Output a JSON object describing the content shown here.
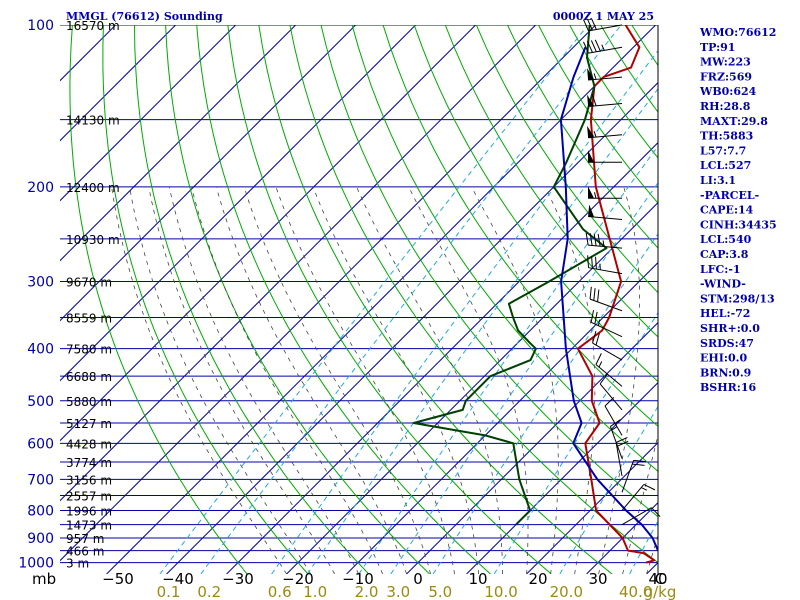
{
  "chart_data": {
    "type": "line",
    "title": "MMGL (76612) Sounding",
    "valid_time": "0000Z  1 MAY 25",
    "pressure_levels": [
      100,
      200,
      300,
      400,
      500,
      600,
      700,
      800,
      900,
      1000
    ],
    "pressure_labels": [
      "100",
      "200",
      "300",
      "400",
      "500",
      "600",
      "700",
      "800",
      "900",
      "1000"
    ],
    "height_labels": [
      {
        "p": 100,
        "label": "16570 m"
      },
      {
        "p": 150,
        "label": "14130 m"
      },
      {
        "p": 200,
        "label": "12400 m"
      },
      {
        "p": 250,
        "label": "10930 m"
      },
      {
        "p": 300,
        "label": "9670 m"
      },
      {
        "p": 350,
        "label": "8559 m"
      },
      {
        "p": 400,
        "label": "7580 m"
      },
      {
        "p": 450,
        "label": "6688 m"
      },
      {
        "p": 500,
        "label": "5880 m"
      },
      {
        "p": 550,
        "label": "5127 m"
      },
      {
        "p": 600,
        "label": "4428 m"
      },
      {
        "p": 650,
        "label": "3774 m"
      },
      {
        "p": 700,
        "label": "3156 m"
      },
      {
        "p": 750,
        "label": "2557 m"
      },
      {
        "p": 800,
        "label": "1996 m"
      },
      {
        "p": 850,
        "label": "1473 m"
      },
      {
        "p": 900,
        "label": "957 m"
      },
      {
        "p": 950,
        "label": "466 m"
      },
      {
        "p": 1000,
        "label": "3 m"
      }
    ],
    "temperature_ticks": [
      -50,
      -40,
      -30,
      -20,
      -10,
      0,
      10,
      20,
      30,
      40
    ],
    "temperature_tick_labels": [
      "−50",
      "−40",
      "−30",
      "−20",
      "−10",
      "0",
      "10",
      "20",
      "30",
      "40"
    ],
    "x_axis_prefix": "mb",
    "x_axis_suffix": "C",
    "mixing_ratio_labels": [
      "0.1",
      "0.2",
      "0.6",
      "1.0",
      "2.0",
      "3.0",
      "5.0",
      "10.0",
      "20.0",
      "40.0"
    ],
    "mixing_ratio_unit": "g/kg",
    "series": [
      {
        "id": "temperature",
        "color": "#b00000",
        "points": [
          [
            1000,
            38
          ],
          [
            990,
            39
          ],
          [
            960,
            36
          ],
          [
            950,
            33
          ],
          [
            900,
            30
          ],
          [
            800,
            21
          ],
          [
            700,
            15
          ],
          [
            600,
            8
          ],
          [
            550,
            7
          ],
          [
            500,
            2
          ],
          [
            450,
            -2
          ],
          [
            400,
            -9
          ],
          [
            370,
            -8
          ],
          [
            350,
            -9
          ],
          [
            300,
            -13
          ],
          [
            250,
            -22
          ],
          [
            200,
            -33
          ],
          [
            150,
            -45
          ],
          [
            130,
            -50
          ],
          [
            125,
            -50
          ],
          [
            120,
            -47
          ],
          [
            110,
            -49
          ],
          [
            100,
            -55
          ]
        ]
      },
      {
        "id": "dewpoint",
        "color": "#004000",
        "points": [
          [
            850,
            10
          ],
          [
            800,
            10
          ],
          [
            700,
            3
          ],
          [
            600,
            -4
          ],
          [
            580,
            -10
          ],
          [
            550,
            -24
          ],
          [
            520,
            -18
          ],
          [
            500,
            -19
          ],
          [
            450,
            -19
          ],
          [
            420,
            -15
          ],
          [
            400,
            -16
          ],
          [
            390,
            -18
          ],
          [
            370,
            -22
          ],
          [
            350,
            -25
          ],
          [
            330,
            -28
          ],
          [
            300,
            -25
          ],
          [
            260,
            -21
          ],
          [
            240,
            -28
          ],
          [
            200,
            -40
          ],
          [
            180,
            -42
          ],
          [
            150,
            -46
          ],
          [
            130,
            -50
          ],
          [
            115,
            -56
          ],
          [
            100,
            -61
          ]
        ]
      },
      {
        "id": "parcel",
        "color": "#0000aa",
        "points": [
          [
            950,
            38
          ],
          [
            900,
            35
          ],
          [
            850,
            31
          ],
          [
            800,
            26
          ],
          [
            700,
            16
          ],
          [
            600,
            6
          ],
          [
            550,
            4
          ],
          [
            500,
            -1
          ],
          [
            400,
            -11
          ],
          [
            300,
            -23
          ],
          [
            250,
            -29
          ],
          [
            200,
            -38
          ],
          [
            150,
            -50
          ],
          [
            125,
            -55
          ],
          [
            110,
            -58
          ]
        ]
      }
    ],
    "wind_barbs": [
      {
        "p": 100,
        "dir": 260,
        "spd": 30
      },
      {
        "p": 110,
        "dir": 260,
        "spd": 45
      },
      {
        "p": 125,
        "dir": 265,
        "spd": 55
      },
      {
        "p": 140,
        "dir": 265,
        "spd": 60
      },
      {
        "p": 160,
        "dir": 265,
        "spd": 55
      },
      {
        "p": 180,
        "dir": 270,
        "spd": 50
      },
      {
        "p": 210,
        "dir": 270,
        "spd": 55
      },
      {
        "p": 230,
        "dir": 275,
        "spd": 50
      },
      {
        "p": 260,
        "dir": 275,
        "spd": 45
      },
      {
        "p": 290,
        "dir": 280,
        "spd": 35
      },
      {
        "p": 340,
        "dir": 290,
        "spd": 30
      },
      {
        "p": 380,
        "dir": 295,
        "spd": 25
      },
      {
        "p": 420,
        "dir": 300,
        "spd": 20
      },
      {
        "p": 470,
        "dir": 310,
        "spd": 15
      },
      {
        "p": 520,
        "dir": 320,
        "spd": 10
      },
      {
        "p": 580,
        "dir": 330,
        "spd": 10
      },
      {
        "p": 640,
        "dir": 340,
        "spd": 15
      },
      {
        "p": 690,
        "dir": 350,
        "spd": 20
      },
      {
        "p": 740,
        "dir": 20,
        "spd": 20
      },
      {
        "p": 800,
        "dir": 40,
        "spd": 15
      },
      {
        "p": 850,
        "dir": 60,
        "spd": 10
      }
    ]
  },
  "indices": [
    "WMO:76612",
    "TP:91",
    "MW:223",
    "FRZ:569",
    "WB0:624",
    "RH:28.8",
    "MAXT:29.8",
    "TH:5883",
    "L57:7.7",
    "LCL:527",
    "LI:3.1",
    "-PARCEL-",
    "CAPE:14",
    "CINH:34435",
    "LCL:540",
    "CAP:3.8",
    "LFC:-1",
    "-WIND-",
    "STM:298/13",
    "HEL:-72",
    "SHR+:0.0",
    "SRDS:47",
    "EHI:0.0",
    "BRN:0.9",
    "BSHR:16"
  ]
}
